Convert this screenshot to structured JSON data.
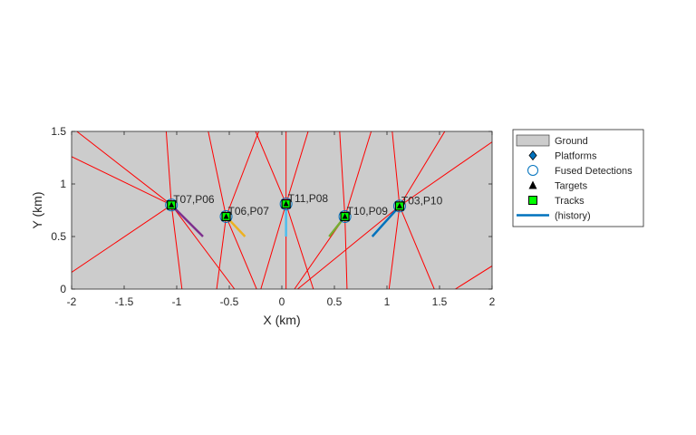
{
  "chart_data": {
    "type": "scatter",
    "title": "",
    "xlabel": "X (km)",
    "ylabel": "Y (km)",
    "xlim": [
      -2,
      2
    ],
    "ylim": [
      0,
      1.5
    ],
    "x_ticks": [
      "-2",
      "-1.5",
      "-1",
      "-0.5",
      "0",
      "0.5",
      "1",
      "1.5",
      "2"
    ],
    "y_ticks": [
      "0",
      "0.5",
      "1",
      "1.5"
    ],
    "grid": false,
    "ground_color": "#cccccc",
    "legend": {
      "placement": "outside-top-right",
      "entries": [
        {
          "label": "Ground",
          "marker": "patch",
          "color": "#cccccc"
        },
        {
          "label": "Platforms",
          "marker": "diamond",
          "color": "#0072bd"
        },
        {
          "label": "Fused Detections",
          "marker": "circle-open",
          "color": "#0072bd"
        },
        {
          "label": "Targets",
          "marker": "triangle",
          "color": "#000000"
        },
        {
          "label": "Tracks",
          "marker": "square",
          "color": "#00ff00"
        },
        {
          "label": "(history)",
          "marker": "line",
          "color": "#0072bd"
        }
      ]
    },
    "tracks": [
      {
        "label": "T07,P06",
        "x": -1.05,
        "y": 0.8,
        "history_from": [
          -0.75,
          0.5
        ],
        "history_color": "#7e2f8e"
      },
      {
        "label": "T06,P07",
        "x": -0.53,
        "y": 0.69,
        "history_from": [
          -0.35,
          0.5
        ],
        "history_color": "#edb120"
      },
      {
        "label": "T11,P08",
        "x": 0.04,
        "y": 0.81,
        "history_from": [
          0.04,
          0.5
        ],
        "history_color": "#4dbeee"
      },
      {
        "label": "T10,P09",
        "x": 0.6,
        "y": 0.69,
        "history_from": [
          0.45,
          0.5
        ],
        "history_color": "#77ac30"
      },
      {
        "label": "T03,P10",
        "x": 1.12,
        "y": 0.79,
        "history_from": [
          0.86,
          0.5
        ],
        "history_color": "#0072bd"
      }
    ],
    "sensor_rays": [
      [
        [
          -1.05,
          0.8
        ],
        [
          -1.95,
          1.5
        ]
      ],
      [
        [
          -1.05,
          0.8
        ],
        [
          -2.0,
          1.26
        ]
      ],
      [
        [
          -1.05,
          0.8
        ],
        [
          -1.1,
          1.5
        ]
      ],
      [
        [
          -1.05,
          0.8
        ],
        [
          -0.95,
          0.0
        ]
      ],
      [
        [
          -1.05,
          0.8
        ],
        [
          -0.45,
          0.0
        ]
      ],
      [
        [
          -1.05,
          0.8
        ],
        [
          -2.0,
          0.16
        ]
      ],
      [
        [
          -0.53,
          0.69
        ],
        [
          -0.7,
          1.5
        ]
      ],
      [
        [
          -0.53,
          0.69
        ],
        [
          -0.22,
          1.5
        ]
      ],
      [
        [
          -0.53,
          0.69
        ],
        [
          -0.62,
          0.0
        ]
      ],
      [
        [
          -0.53,
          0.69
        ],
        [
          -0.24,
          0.0
        ]
      ],
      [
        [
          0.04,
          0.81
        ],
        [
          -0.25,
          1.5
        ]
      ],
      [
        [
          0.04,
          0.81
        ],
        [
          0.25,
          1.5
        ]
      ],
      [
        [
          0.04,
          0.81
        ],
        [
          0.04,
          1.5
        ]
      ],
      [
        [
          0.04,
          0.81
        ],
        [
          0.04,
          0.0
        ]
      ],
      [
        [
          0.04,
          0.81
        ],
        [
          -0.2,
          0.0
        ]
      ],
      [
        [
          0.04,
          0.81
        ],
        [
          0.3,
          0.0
        ]
      ],
      [
        [
          0.6,
          0.69
        ],
        [
          0.55,
          1.5
        ]
      ],
      [
        [
          0.6,
          0.69
        ],
        [
          0.85,
          1.5
        ]
      ],
      [
        [
          0.6,
          0.69
        ],
        [
          0.62,
          0.0
        ]
      ],
      [
        [
          0.6,
          0.69
        ],
        [
          0.12,
          0.0
        ]
      ],
      [
        [
          1.12,
          0.79
        ],
        [
          1.55,
          1.5
        ]
      ],
      [
        [
          1.12,
          0.79
        ],
        [
          1.05,
          1.5
        ]
      ],
      [
        [
          1.12,
          0.79
        ],
        [
          0.15,
          0.0
        ]
      ],
      [
        [
          1.12,
          0.79
        ],
        [
          1.02,
          0.0
        ]
      ],
      [
        [
          1.12,
          0.79
        ],
        [
          1.45,
          0.0
        ]
      ],
      [
        [
          1.12,
          0.79
        ],
        [
          2.0,
          1.4
        ]
      ],
      [
        [
          1.65,
          0.0
        ],
        [
          2.0,
          0.22
        ]
      ]
    ],
    "ray_color": "#ff0000"
  }
}
